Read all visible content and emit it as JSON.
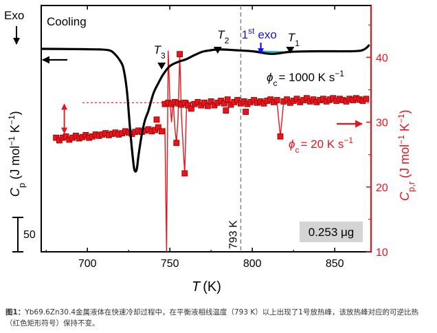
{
  "chart_data": {
    "type": "line",
    "title": "Cooling",
    "exo_label": "Exo",
    "xlabel": "T (K)",
    "xlabel_italic": "T",
    "xlabel_unit": "(K)",
    "xlim": [
      672,
      872
    ],
    "xticks": [
      700,
      750,
      800,
      850
    ],
    "ylabel_left": "Cp (J mol−1 K−1)",
    "ylabel_right": "Cp,r (J mol−1 K−1)",
    "y_right_lim": [
      10,
      48
    ],
    "y_right_ticks": [
      10,
      20,
      30,
      40
    ],
    "scale_bar_label": "50",
    "scale_bar_value": 50,
    "vline_temperature": 793,
    "vline_label": "793 K",
    "sample_mass_label": "0.253 μg",
    "reversing_level": 33,
    "annotations": {
      "T3": {
        "letter": "T",
        "sub": "3",
        "temperature": 746
      },
      "T2": {
        "letter": "T",
        "sub": "2",
        "temperature": 778
      },
      "T1": {
        "letter": "T",
        "sub": "1",
        "temperature": 824
      },
      "first_exo": {
        "num": "1",
        "sup": "st",
        "word": "exo",
        "temperature": 806
      }
    },
    "series": [
      {
        "name": "ϕc = 1000 K s−1",
        "rate_label": "= 1000 K s",
        "rate_exp": "−1",
        "color": "#000000",
        "axis": "left (arbitrary units, scale bar)",
        "x": [
          672,
          690,
          700,
          708,
          713,
          716,
          720,
          722,
          724,
          726,
          728,
          729,
          730,
          731,
          733,
          735,
          737,
          740,
          743,
          746,
          750,
          755,
          760,
          765,
          770,
          775,
          778,
          783,
          790,
          800,
          808,
          812,
          816,
          822,
          830,
          840,
          850,
          860,
          866,
          869,
          871
        ],
        "cp": [
          0,
          -0.3,
          -0.6,
          -0.9,
          -2,
          -6,
          -18,
          -30,
          -62,
          -120,
          -168,
          -178,
          -174,
          -155,
          -124,
          -103,
          -90,
          -65,
          -50,
          -37,
          -25,
          -19,
          -15,
          -9,
          -4,
          -2,
          -1,
          -1,
          -2,
          -3.5,
          -6.5,
          -7.3,
          -6.5,
          -4.5,
          -3.8,
          -3.5,
          -3.5,
          -3.5,
          -2.5,
          1,
          6
        ]
      },
      {
        "name": "ϕc = 20 K s−1",
        "rate_label": "= 20 K s",
        "rate_exp": "−1",
        "color": "#e8141a",
        "axis": "right",
        "points": [
          [
            681,
            27.6
          ],
          [
            683,
            27.2
          ],
          [
            685,
            27.6
          ],
          [
            687,
            27.8
          ],
          [
            689,
            27.3
          ],
          [
            691,
            27.6
          ],
          [
            693,
            27.9
          ],
          [
            695,
            27.5
          ],
          [
            697,
            27.7
          ],
          [
            699,
            28.0
          ],
          [
            701,
            27.6
          ],
          [
            703,
            27.8
          ],
          [
            705,
            28.1
          ],
          [
            707,
            27.9
          ],
          [
            709,
            28.1
          ],
          [
            711,
            28.3
          ],
          [
            713,
            28.0
          ],
          [
            715,
            28.2
          ],
          [
            717,
            28.4
          ],
          [
            719,
            28.1
          ],
          [
            721,
            28.3
          ],
          [
            723,
            28.6
          ],
          [
            725,
            28.4
          ],
          [
            727,
            28.2
          ],
          [
            729,
            28.5
          ],
          [
            731,
            28.7
          ],
          [
            733,
            28.5
          ],
          [
            735,
            28.7
          ],
          [
            737,
            28.9
          ],
          [
            739,
            28.6
          ],
          [
            741,
            28.8
          ],
          [
            742,
            30.4
          ],
          [
            743,
            29.2
          ],
          [
            745,
            28.6
          ],
          [
            747,
            32.8
          ],
          [
            749,
            33.0
          ],
          [
            751,
            32.8
          ],
          [
            753,
            33.1
          ],
          [
            755,
            32.9
          ],
          [
            757,
            32.7
          ],
          [
            759,
            33.0
          ],
          [
            761,
            32.6
          ],
          [
            763,
            32.1
          ],
          [
            765,
            32.8
          ],
          [
            767,
            33.1
          ],
          [
            769,
            32.6
          ],
          [
            771,
            33.0
          ],
          [
            773,
            32.5
          ],
          [
            775,
            33.2
          ],
          [
            777,
            32.6
          ],
          [
            779,
            33.0
          ],
          [
            781,
            33.3
          ],
          [
            783,
            32.9
          ],
          [
            785,
            33.5
          ],
          [
            787,
            32.7
          ],
          [
            789,
            33.1
          ],
          [
            791,
            33.4
          ],
          [
            793,
            32.9
          ],
          [
            795,
            33.2
          ],
          [
            797,
            32.8
          ],
          [
            799,
            33.1
          ],
          [
            801,
            33.4
          ],
          [
            803,
            33.0
          ],
          [
            805,
            33.2
          ],
          [
            807,
            32.9
          ],
          [
            809,
            33.3
          ],
          [
            811,
            33.5
          ],
          [
            813,
            33.1
          ],
          [
            815,
            33.4
          ],
          [
            819,
            33.2
          ],
          [
            821,
            33.5
          ],
          [
            823,
            33.0
          ],
          [
            825,
            33.3
          ],
          [
            827,
            33.6
          ],
          [
            829,
            33.1
          ],
          [
            831,
            33.4
          ],
          [
            833,
            33.7
          ],
          [
            835,
            33.2
          ],
          [
            837,
            33.5
          ],
          [
            839,
            33.1
          ],
          [
            841,
            33.4
          ],
          [
            843,
            33.6
          ],
          [
            845,
            33.2
          ],
          [
            847,
            33.5
          ],
          [
            849,
            33.7
          ],
          [
            851,
            33.3
          ],
          [
            853,
            33.6
          ],
          [
            855,
            33.4
          ],
          [
            857,
            33.2
          ],
          [
            859,
            33.6
          ],
          [
            861,
            33.4
          ],
          [
            863,
            33.7
          ],
          [
            865,
            33.5
          ],
          [
            867,
            33.3
          ],
          [
            869,
            33.6
          ],
          [
            754,
            26.8
          ],
          [
            756,
            40.5
          ],
          [
            759,
            22.1
          ],
          [
            784,
            31.8
          ],
          [
            796,
            31.6
          ],
          [
            817,
            27.8
          ]
        ],
        "spike_line_x": [
          741,
          743,
          745,
          747,
          748,
          749,
          750,
          751,
          752,
          753,
          754,
          755,
          756,
          757,
          758,
          759,
          760,
          761,
          762,
          763,
          812,
          815,
          817,
          819,
          822
        ],
        "spike_line_y": [
          28.8,
          29.2,
          28.6,
          29,
          10,
          41,
          33.6,
          30,
          33.4,
          29.2,
          26.8,
          30.8,
          40.5,
          31.2,
          26.5,
          22.1,
          31.5,
          33.4,
          32.4,
          33.2,
          33.2,
          33,
          27.8,
          33.2,
          33.3
        ]
      }
    ],
    "caption": {
      "label": "图1：",
      "text": "Yb69.6Zn30.4金属液体在快速冷却过程中，在平衡液相线温度（793 K）以上出现了1号放热峰，该放热峰对应的可逆比热（红色矩形符号）保持不变。"
    }
  }
}
